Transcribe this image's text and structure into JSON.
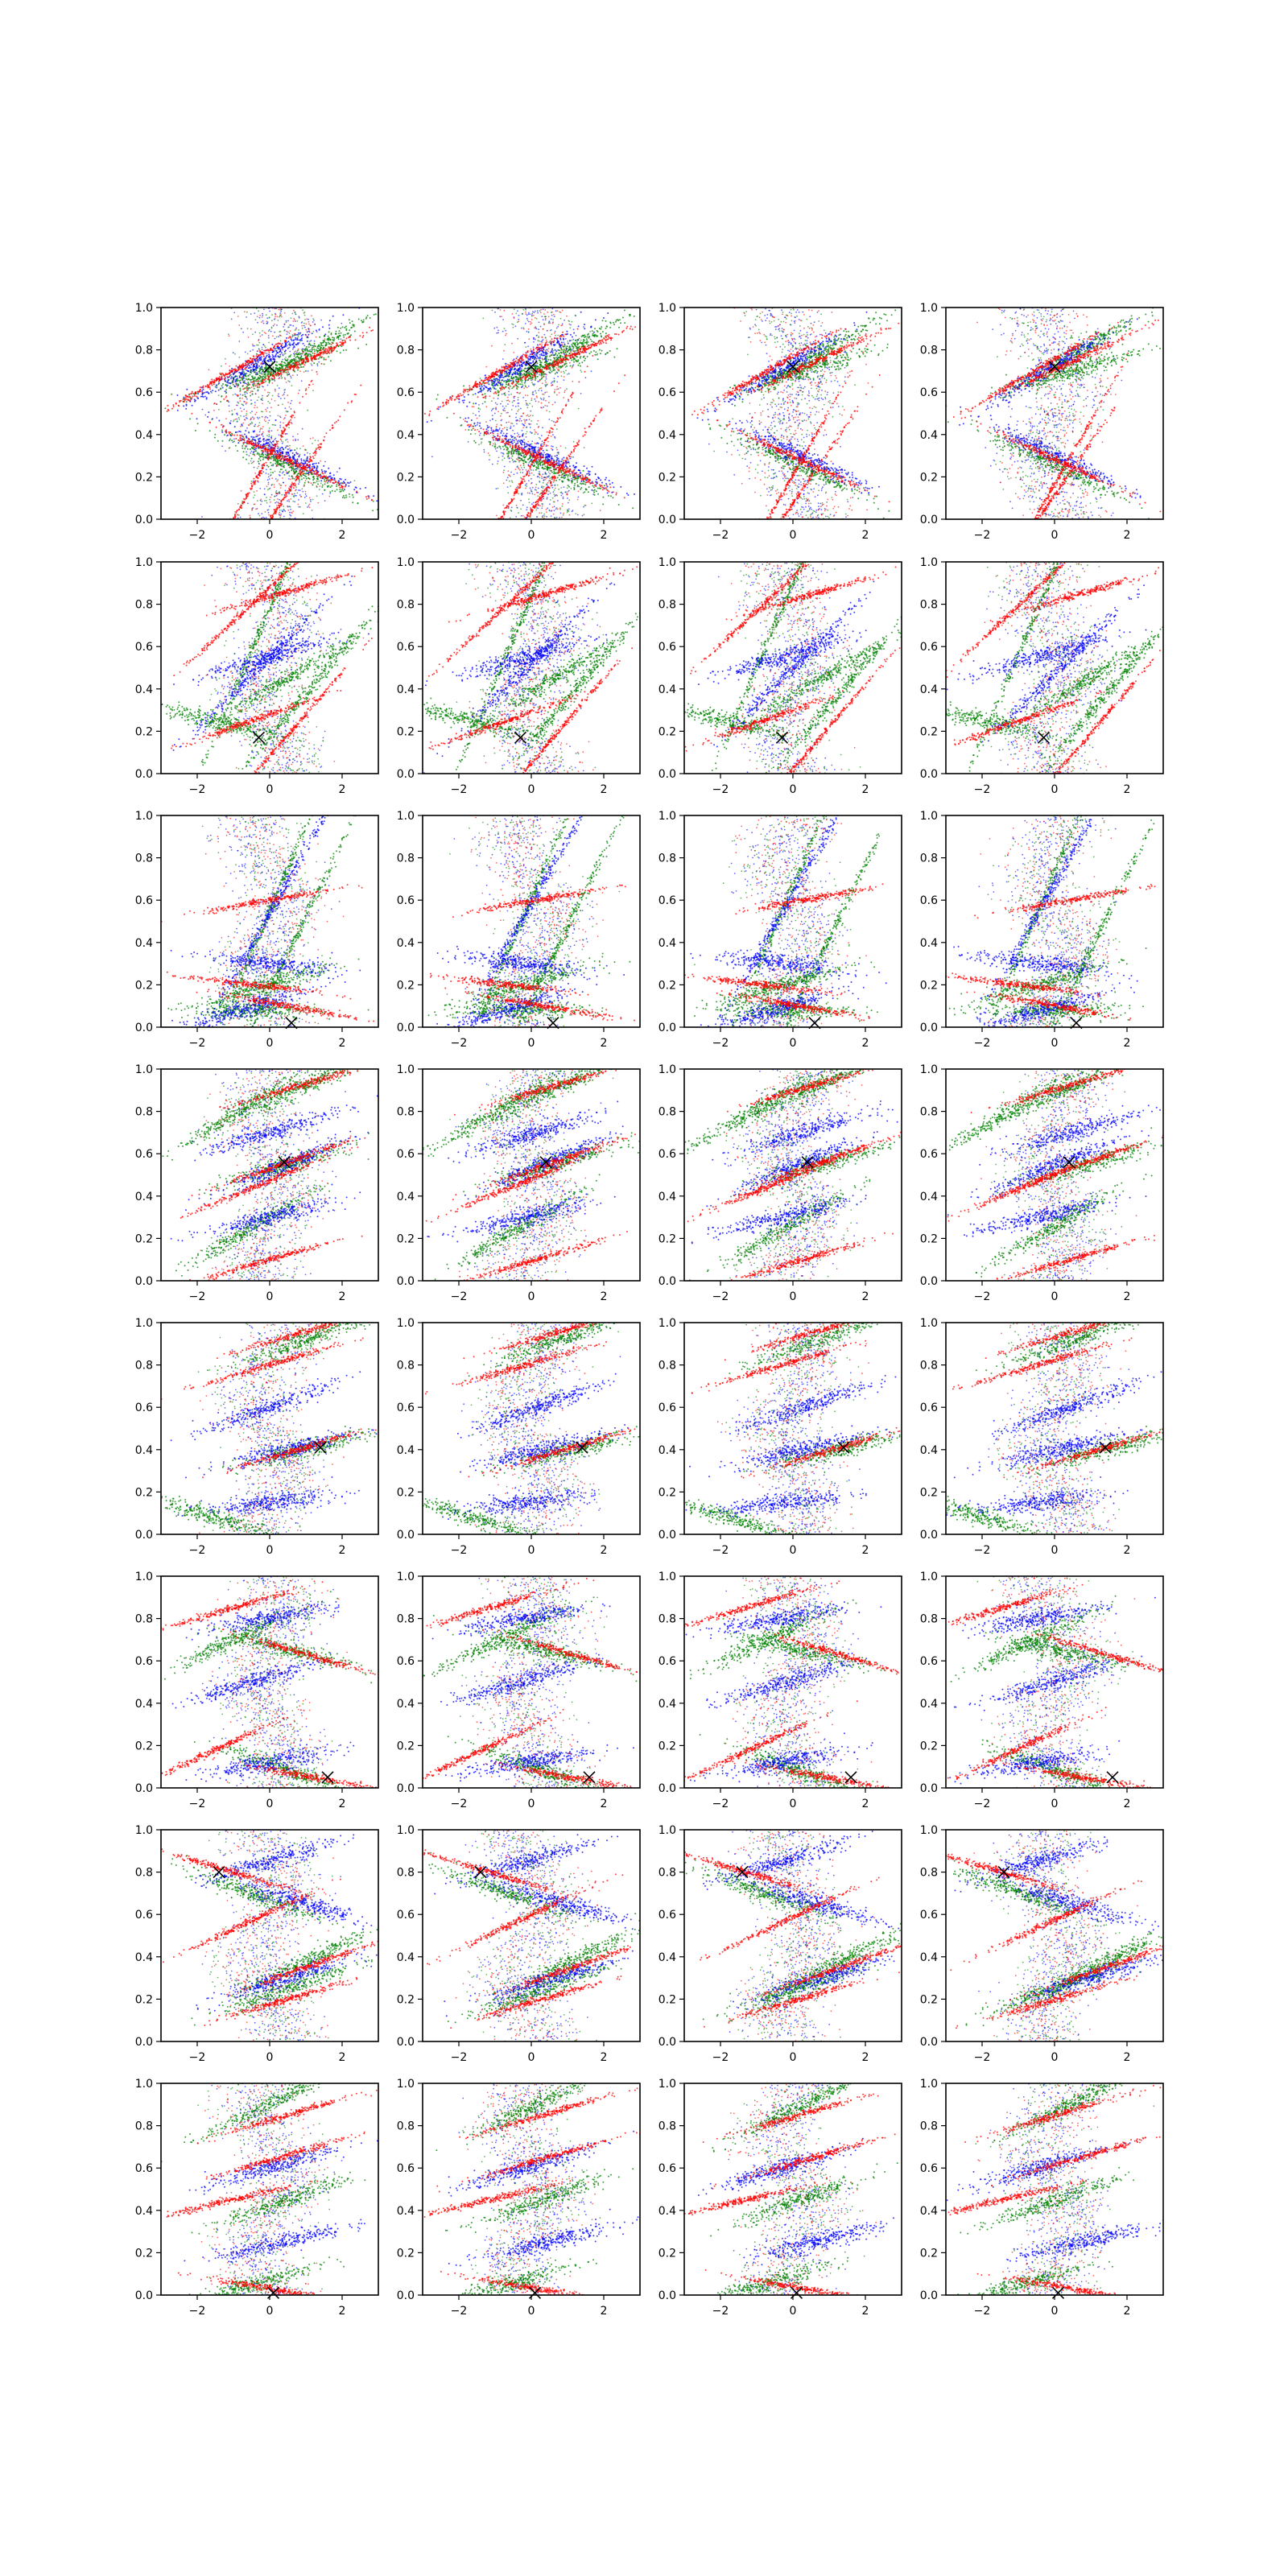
{
  "figure": {
    "grid": {
      "rows": 8,
      "cols": 4
    }
  },
  "chart_data": {
    "type": "scatter",
    "title": "",
    "xlabel": "",
    "ylabel": "",
    "xlim": [
      -3,
      3
    ],
    "ylim": [
      0,
      1
    ],
    "grid": false,
    "legend": "none",
    "x_ticks": [
      -2,
      0,
      2
    ],
    "x_tick_labels": [
      "−2",
      "0",
      "2"
    ],
    "y_ticks": [
      0,
      0.2,
      0.4,
      0.6,
      0.8,
      1.0
    ],
    "y_tick_labels": [
      "0.0",
      "0.2",
      "0.4",
      "0.6",
      "0.8",
      "1.0"
    ],
    "series_colors": {
      "red": "#ff0000",
      "green": "#008000",
      "blue": "#0000ff",
      "marker": "#000000"
    },
    "marker_symbol": "x",
    "rows": [
      {
        "marker": [
          0.0,
          0.72
        ],
        "bands": {
          "red": [
            [
              0.5,
              -0.08,
              0.28
            ],
            [
              -1.0,
              0.1,
              0.7
            ],
            [
              1.0,
              0.08,
              0.75
            ],
            [
              -0.6,
              0.3,
              0.12
            ],
            [
              0.2,
              0.25,
              0.05
            ]
          ],
          "green": [
            [
              0.5,
              -0.08,
              0.25
            ],
            [
              0.0,
              0.05,
              0.7
            ],
            [
              1.0,
              0.1,
              0.78
            ]
          ],
          "blue": [
            [
              0.5,
              -0.08,
              0.3
            ],
            [
              -0.5,
              0.1,
              0.72
            ]
          ]
        }
      },
      {
        "marker": [
          -0.3,
          0.17
        ],
        "bands": {
          "red": [
            [
              -0.5,
              0.06,
              0.25
            ],
            [
              0.3,
              0.05,
              0.85
            ],
            [
              -0.5,
              0.16,
              0.8
            ],
            [
              0.5,
              0.2,
              0.18
            ]
          ],
          "green": [
            [
              -1.5,
              -0.04,
              0.25
            ],
            [
              0.5,
              0.1,
              0.45
            ],
            [
              -0.2,
              0.4,
              0.7
            ],
            [
              1.0,
              0.2,
              0.38
            ]
          ],
          "blue": [
            [
              0.0,
              0.05,
              0.55
            ],
            [
              -0.3,
              0.17,
              0.5
            ]
          ]
        }
      },
      {
        "marker": [
          0.6,
          0.02
        ],
        "bands": {
          "red": [
            [
              -0.5,
              -0.02,
              0.2
            ],
            [
              0.0,
              0.03,
              0.6
            ],
            [
              0.5,
              -0.03,
              0.1
            ]
          ],
          "green": [
            [
              0.0,
              0.05,
              0.2
            ],
            [
              -0.5,
              0.0,
              0.08
            ],
            [
              0.0,
              0.4,
              0.55
            ],
            [
              0.5,
              0.35,
              0.35
            ]
          ],
          "blue": [
            [
              0.0,
              -0.02,
              0.3
            ],
            [
              -0.8,
              0.05,
              0.08
            ],
            [
              0.2,
              0.3,
              0.6
            ]
          ]
        }
      },
      {
        "marker": [
          0.4,
          0.56
        ],
        "bands": {
          "red": [
            [
              0.8,
              0.05,
              0.92
            ],
            [
              0.5,
              0.06,
              0.56
            ],
            [
              -0.3,
              0.07,
              0.45
            ],
            [
              0.0,
              0.05,
              0.1
            ]
          ],
          "green": [
            [
              1.0,
              0.08,
              0.92
            ],
            [
              0.5,
              0.05,
              0.55
            ],
            [
              -0.8,
              0.1,
              0.8
            ],
            [
              -0.5,
              0.1,
              0.25
            ]
          ],
          "blue": [
            [
              0.5,
              0.07,
              0.55
            ],
            [
              0.0,
              0.05,
              0.7
            ],
            [
              0.0,
              0.04,
              0.3
            ]
          ]
        }
      },
      {
        "marker": [
          1.4,
          0.41
        ],
        "bands": {
          "red": [
            [
              1.0,
              0.05,
              0.96
            ],
            [
              0.8,
              0.05,
              0.4
            ],
            [
              0.0,
              0.05,
              0.8
            ]
          ],
          "green": [
            [
              1.0,
              0.06,
              0.92
            ],
            [
              1.0,
              0.04,
              0.4
            ],
            [
              -1.5,
              -0.05,
              0.08
            ]
          ],
          "blue": [
            [
              0.5,
              0.04,
              0.4
            ],
            [
              0.0,
              0.06,
              0.6
            ],
            [
              0.0,
              0.02,
              0.15
            ]
          ]
        }
      },
      {
        "marker": [
          1.6,
          0.05
        ],
        "bands": {
          "red": [
            [
              -1.0,
              0.05,
              0.85
            ],
            [
              1.0,
              -0.05,
              0.63
            ],
            [
              1.2,
              -0.03,
              0.05
            ],
            [
              -1.5,
              0.08,
              0.18
            ]
          ],
          "green": [
            [
              0.5,
              -0.06,
              0.08
            ],
            [
              -1.0,
              0.08,
              0.7
            ],
            [
              0.5,
              -0.04,
              0.65
            ]
          ],
          "blue": [
            [
              0.0,
              0.03,
              0.12
            ],
            [
              -0.5,
              0.05,
              0.5
            ],
            [
              0.0,
              0.03,
              0.8
            ]
          ]
        }
      },
      {
        "marker": [
          -1.4,
          0.8
        ],
        "bands": {
          "red": [
            [
              -1.0,
              -0.05,
              0.8
            ],
            [
              1.0,
              0.06,
              0.35
            ],
            [
              0.5,
              0.05,
              0.2
            ],
            [
              -0.5,
              0.08,
              0.57
            ]
          ],
          "green": [
            [
              -0.5,
              -0.06,
              0.7
            ],
            [
              1.0,
              0.08,
              0.38
            ],
            [
              0.5,
              0.06,
              0.25
            ]
          ],
          "blue": [
            [
              1.0,
              -0.05,
              0.65
            ],
            [
              0.5,
              0.05,
              0.3
            ],
            [
              0.0,
              0.05,
              0.85
            ]
          ]
        }
      },
      {
        "marker": [
          0.1,
          0.01
        ],
        "bands": {
          "red": [
            [
              -1.0,
              0.04,
              0.45
            ],
            [
              0.0,
              -0.03,
              0.03
            ],
            [
              0.5,
              0.05,
              0.85
            ],
            [
              0.3,
              0.05,
              0.65
            ]
          ],
          "green": [
            [
              0.5,
              0.06,
              0.45
            ],
            [
              0.0,
              0.08,
              0.9
            ],
            [
              -0.5,
              0.05,
              0.05
            ]
          ],
          "blue": [
            [
              0.0,
              0.05,
              0.6
            ],
            [
              0.3,
              0.04,
              0.25
            ]
          ]
        }
      }
    ]
  }
}
